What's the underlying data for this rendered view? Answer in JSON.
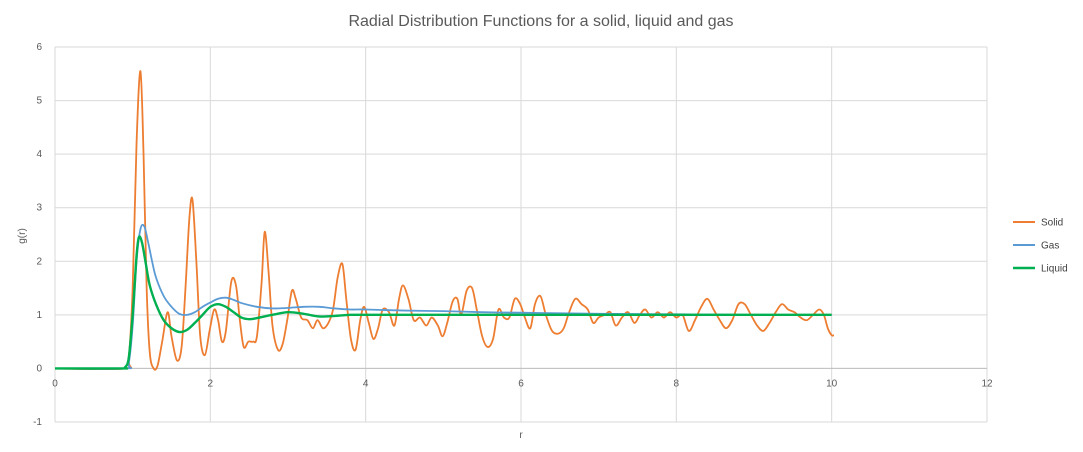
{
  "chart_data": {
    "type": "line",
    "title": "Radial Distribution Functions for a solid, liquid and gas",
    "xlabel": "r",
    "ylabel": "g(r)",
    "xlim": [
      0,
      12
    ],
    "ylim": [
      -1,
      6
    ],
    "x_ticks": [
      "0",
      "2",
      "4",
      "6",
      "8",
      "10",
      "12"
    ],
    "y_ticks": [
      "-1",
      "0",
      "1",
      "2",
      "3",
      "4",
      "5",
      "6"
    ],
    "grid": true,
    "legend_position": "right",
    "series": [
      {
        "name": "Solid",
        "color": "#ED7D31",
        "points": [
          [
            0,
            0
          ],
          [
            0.9,
            0
          ],
          [
            0.95,
            0.2
          ],
          [
            1.0,
            1.5
          ],
          [
            1.05,
            4.2
          ],
          [
            1.1,
            5.55
          ],
          [
            1.14,
            4.0
          ],
          [
            1.18,
            1.5
          ],
          [
            1.22,
            0.3
          ],
          [
            1.27,
            0.0
          ],
          [
            1.32,
            0.05
          ],
          [
            1.38,
            0.5
          ],
          [
            1.45,
            1.05
          ],
          [
            1.5,
            0.6
          ],
          [
            1.57,
            0.15
          ],
          [
            1.63,
            0.4
          ],
          [
            1.68,
            1.5
          ],
          [
            1.73,
            2.8
          ],
          [
            1.77,
            3.15
          ],
          [
            1.82,
            2.0
          ],
          [
            1.87,
            0.6
          ],
          [
            1.93,
            0.25
          ],
          [
            1.99,
            0.7
          ],
          [
            2.05,
            1.1
          ],
          [
            2.1,
            0.9
          ],
          [
            2.15,
            0.5
          ],
          [
            2.2,
            0.7
          ],
          [
            2.27,
            1.62
          ],
          [
            2.33,
            1.55
          ],
          [
            2.38,
            0.9
          ],
          [
            2.43,
            0.4
          ],
          [
            2.49,
            0.5
          ],
          [
            2.55,
            0.5
          ],
          [
            2.6,
            0.6
          ],
          [
            2.66,
            1.6
          ],
          [
            2.7,
            2.55
          ],
          [
            2.75,
            1.8
          ],
          [
            2.8,
            0.8
          ],
          [
            2.87,
            0.35
          ],
          [
            2.93,
            0.45
          ],
          [
            2.99,
            0.9
          ],
          [
            3.05,
            1.45
          ],
          [
            3.1,
            1.3
          ],
          [
            3.17,
            0.95
          ],
          [
            3.25,
            0.9
          ],
          [
            3.32,
            0.75
          ],
          [
            3.38,
            0.9
          ],
          [
            3.45,
            0.75
          ],
          [
            3.52,
            0.85
          ],
          [
            3.58,
            1.1
          ],
          [
            3.64,
            1.7
          ],
          [
            3.7,
            1.95
          ],
          [
            3.75,
            1.3
          ],
          [
            3.81,
            0.55
          ],
          [
            3.87,
            0.35
          ],
          [
            3.93,
            0.9
          ],
          [
            3.98,
            1.15
          ],
          [
            4.04,
            0.85
          ],
          [
            4.1,
            0.55
          ],
          [
            4.16,
            0.75
          ],
          [
            4.22,
            1.1
          ],
          [
            4.3,
            1.05
          ],
          [
            4.37,
            0.8
          ],
          [
            4.43,
            1.3
          ],
          [
            4.48,
            1.55
          ],
          [
            4.55,
            1.3
          ],
          [
            4.62,
            0.9
          ],
          [
            4.7,
            0.95
          ],
          [
            4.78,
            0.8
          ],
          [
            4.85,
            0.95
          ],
          [
            4.93,
            0.8
          ],
          [
            4.99,
            0.6
          ],
          [
            5.05,
            0.85
          ],
          [
            5.12,
            1.25
          ],
          [
            5.18,
            1.3
          ],
          [
            5.23,
            1.0
          ],
          [
            5.3,
            1.45
          ],
          [
            5.37,
            1.5
          ],
          [
            5.43,
            1.1
          ],
          [
            5.5,
            0.6
          ],
          [
            5.57,
            0.4
          ],
          [
            5.64,
            0.55
          ],
          [
            5.71,
            1.1
          ],
          [
            5.78,
            0.95
          ],
          [
            5.85,
            0.95
          ],
          [
            5.92,
            1.3
          ],
          [
            5.99,
            1.2
          ],
          [
            6.05,
            0.95
          ],
          [
            6.12,
            0.75
          ],
          [
            6.18,
            1.2
          ],
          [
            6.25,
            1.35
          ],
          [
            6.32,
            1.0
          ],
          [
            6.4,
            0.7
          ],
          [
            6.48,
            0.65
          ],
          [
            6.55,
            0.75
          ],
          [
            6.62,
            1.05
          ],
          [
            6.7,
            1.3
          ],
          [
            6.78,
            1.2
          ],
          [
            6.86,
            1.1
          ],
          [
            6.93,
            0.85
          ],
          [
            7.0,
            0.95
          ],
          [
            7.08,
            1.0
          ],
          [
            7.15,
            1.05
          ],
          [
            7.22,
            0.8
          ],
          [
            7.3,
            0.95
          ],
          [
            7.38,
            1.05
          ],
          [
            7.46,
            0.85
          ],
          [
            7.53,
            1.0
          ],
          [
            7.6,
            1.1
          ],
          [
            7.68,
            0.95
          ],
          [
            7.76,
            1.05
          ],
          [
            7.84,
            0.95
          ],
          [
            7.92,
            1.05
          ],
          [
            8.0,
            0.95
          ],
          [
            8.08,
            1.0
          ],
          [
            8.16,
            0.7
          ],
          [
            8.24,
            0.9
          ],
          [
            8.32,
            1.15
          ],
          [
            8.4,
            1.3
          ],
          [
            8.48,
            1.1
          ],
          [
            8.56,
            0.9
          ],
          [
            8.64,
            0.75
          ],
          [
            8.72,
            0.9
          ],
          [
            8.8,
            1.2
          ],
          [
            8.88,
            1.2
          ],
          [
            8.96,
            1.0
          ],
          [
            9.04,
            0.8
          ],
          [
            9.12,
            0.7
          ],
          [
            9.2,
            0.85
          ],
          [
            9.28,
            1.05
          ],
          [
            9.36,
            1.2
          ],
          [
            9.44,
            1.1
          ],
          [
            9.52,
            1.05
          ],
          [
            9.6,
            0.95
          ],
          [
            9.68,
            0.9
          ],
          [
            9.76,
            1.0
          ],
          [
            9.84,
            1.1
          ],
          [
            9.9,
            1.0
          ],
          [
            9.95,
            0.75
          ],
          [
            10.0,
            0.62
          ],
          [
            10.03,
            0.62
          ]
        ]
      },
      {
        "name": "Gas",
        "color": "#5B9BD5",
        "points": [
          [
            0,
            0
          ],
          [
            0.9,
            0
          ],
          [
            0.95,
            0.1
          ],
          [
            1.0,
            0.8
          ],
          [
            1.05,
            2.0
          ],
          [
            1.1,
            2.6
          ],
          [
            1.15,
            2.65
          ],
          [
            1.2,
            2.35
          ],
          [
            1.25,
            2.0
          ],
          [
            1.3,
            1.7
          ],
          [
            1.4,
            1.35
          ],
          [
            1.5,
            1.15
          ],
          [
            1.6,
            1.02
          ],
          [
            1.7,
            1.0
          ],
          [
            1.8,
            1.05
          ],
          [
            1.9,
            1.15
          ],
          [
            2.0,
            1.23
          ],
          [
            2.1,
            1.3
          ],
          [
            2.2,
            1.32
          ],
          [
            2.3,
            1.28
          ],
          [
            2.4,
            1.22
          ],
          [
            2.6,
            1.15
          ],
          [
            2.8,
            1.12
          ],
          [
            3.0,
            1.13
          ],
          [
            3.2,
            1.15
          ],
          [
            3.4,
            1.15
          ],
          [
            3.6,
            1.12
          ],
          [
            3.8,
            1.1
          ],
          [
            4.0,
            1.1
          ],
          [
            4.5,
            1.08
          ],
          [
            5.0,
            1.07
          ],
          [
            5.5,
            1.05
          ],
          [
            6.0,
            1.04
          ],
          [
            6.5,
            1.03
          ],
          [
            7.0,
            1.02
          ],
          [
            8.0,
            1.01
          ],
          [
            9.0,
            1.0
          ],
          [
            10.0,
            1.0
          ]
        ]
      },
      {
        "name": "Liquid",
        "color": "#00B050",
        "points": [
          [
            0,
            0
          ],
          [
            0.85,
            0
          ],
          [
            0.9,
            0.02
          ],
          [
            0.95,
            0.2
          ],
          [
            1.0,
            1.0
          ],
          [
            1.05,
            2.1
          ],
          [
            1.08,
            2.45
          ],
          [
            1.12,
            2.35
          ],
          [
            1.17,
            1.95
          ],
          [
            1.22,
            1.55
          ],
          [
            1.3,
            1.2
          ],
          [
            1.4,
            0.9
          ],
          [
            1.5,
            0.75
          ],
          [
            1.6,
            0.68
          ],
          [
            1.7,
            0.72
          ],
          [
            1.8,
            0.85
          ],
          [
            1.9,
            1.0
          ],
          [
            2.0,
            1.15
          ],
          [
            2.1,
            1.2
          ],
          [
            2.2,
            1.15
          ],
          [
            2.3,
            1.05
          ],
          [
            2.4,
            0.95
          ],
          [
            2.5,
            0.92
          ],
          [
            2.6,
            0.94
          ],
          [
            2.8,
            1.0
          ],
          [
            3.0,
            1.05
          ],
          [
            3.2,
            1.02
          ],
          [
            3.4,
            0.97
          ],
          [
            3.6,
            0.98
          ],
          [
            3.8,
            1.0
          ],
          [
            4.0,
            1.0
          ],
          [
            5.0,
            1.0
          ],
          [
            6.0,
            1.0
          ],
          [
            7.0,
            1.0
          ],
          [
            8.0,
            1.0
          ],
          [
            9.0,
            1.0
          ],
          [
            10.0,
            1.0
          ]
        ]
      }
    ]
  }
}
